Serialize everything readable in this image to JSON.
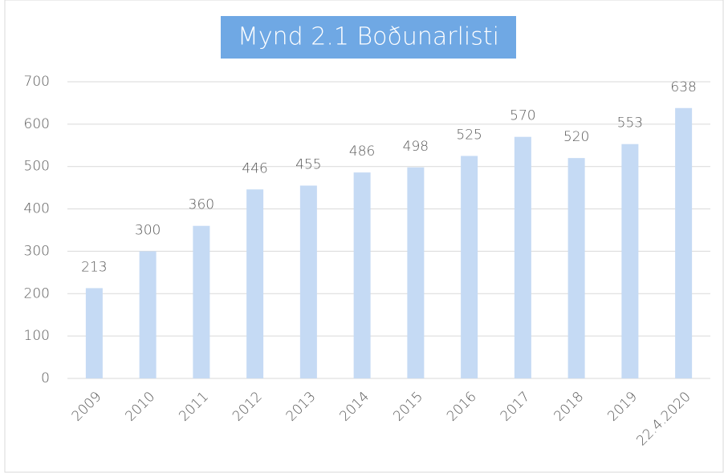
{
  "chart_data": {
    "type": "bar",
    "title": "Mynd 2.1 Boðunarlisti",
    "categories": [
      "2009",
      "2010",
      "2011",
      "2012",
      "2013",
      "2014",
      "2015",
      "2016",
      "2017",
      "2018",
      "2019",
      "22.4.2020"
    ],
    "values": [
      213,
      300,
      360,
      446,
      455,
      486,
      498,
      525,
      570,
      520,
      553,
      638
    ],
    "color": "#c5daf4",
    "ylim": [
      0,
      700
    ],
    "yticks": [
      0,
      100,
      200,
      300,
      400,
      500,
      600,
      700
    ],
    "grid": true
  }
}
